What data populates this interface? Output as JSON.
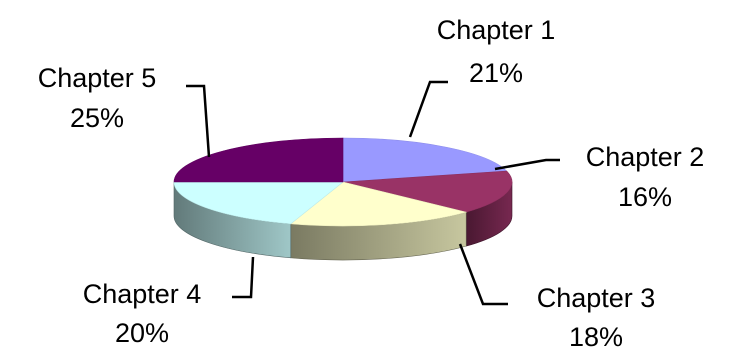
{
  "chart_data": {
    "type": "pie",
    "style": "3d",
    "slices": [
      {
        "label": "Chapter 1",
        "value": 21,
        "value_label": "21%",
        "color": "#9999FF"
      },
      {
        "label": "Chapter 2",
        "value": 16,
        "value_label": "16%",
        "color": "#993366"
      },
      {
        "label": "Chapter 3",
        "value": 18,
        "value_label": "18%",
        "color": "#FFFFCC"
      },
      {
        "label": "Chapter 4",
        "value": 20,
        "value_label": "20%",
        "color": "#CCFFFF"
      },
      {
        "label": "Chapter 5",
        "value": 25,
        "value_label": "25%",
        "color": "#660066"
      }
    ]
  }
}
